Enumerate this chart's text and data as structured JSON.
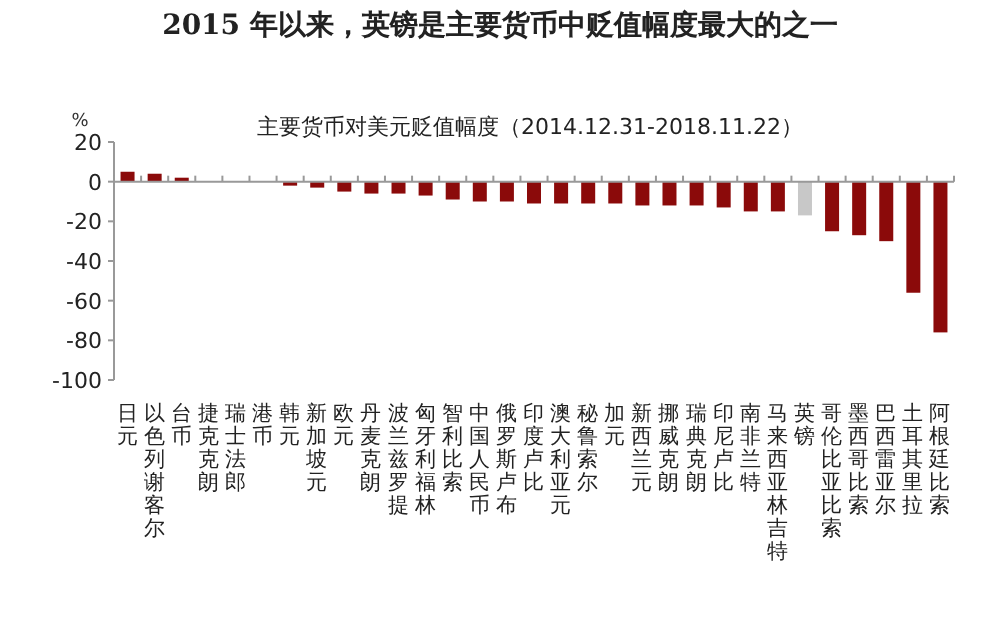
{
  "chart_data": {
    "type": "bar",
    "title": "2015 年以来，英镑是主要货币中贬值幅度最大的之一",
    "subtitle": "主要货币对美元贬值幅度（2014.12.31-2018.11.22）",
    "ylabel": "%",
    "categories": [
      "日元",
      "以色列谢客尔",
      "台币",
      "捷克克朗",
      "瑞士法郎",
      "港币",
      "韩元",
      "新加坡元",
      "欧元",
      "丹麦克朗",
      "波兰兹罗提",
      "匈牙利福林",
      "智利比索",
      "中国人民币",
      "俄罗斯卢布",
      "印度卢比",
      "澳大利亚元",
      "秘鲁索尔",
      "加元",
      "新西兰元",
      "挪威克朗",
      "瑞典克朗",
      "印尼卢比",
      "南非兰特",
      "马来西亚林吉特",
      "英镑",
      "哥伦比亚比索",
      "墨西哥比索",
      "巴西雷亚尔",
      "土耳其里拉",
      "阿根廷比索"
    ],
    "values": [
      5,
      4,
      2,
      0,
      0,
      0,
      -2,
      -3,
      -5,
      -6,
      -6,
      -7,
      -9,
      -10,
      -10,
      -11,
      -11,
      -11,
      -11,
      -12,
      -12,
      -12,
      -13,
      -15,
      -15,
      -17,
      -25,
      -27,
      -30,
      -56,
      -76
    ],
    "colors": [
      "#8b0a0a",
      "#8b0a0a",
      "#8b0a0a",
      "#8b0a0a",
      "#8b0a0a",
      "#8b0a0a",
      "#8b0a0a",
      "#8b0a0a",
      "#8b0a0a",
      "#8b0a0a",
      "#8b0a0a",
      "#8b0a0a",
      "#8b0a0a",
      "#8b0a0a",
      "#8b0a0a",
      "#8b0a0a",
      "#8b0a0a",
      "#8b0a0a",
      "#8b0a0a",
      "#8b0a0a",
      "#8b0a0a",
      "#8b0a0a",
      "#8b0a0a",
      "#8b0a0a",
      "#8b0a0a",
      "#c8c8c8",
      "#8b0a0a",
      "#8b0a0a",
      "#8b0a0a",
      "#8b0a0a",
      "#8b0a0a"
    ],
    "ylim": [
      -100,
      20
    ],
    "yticks": [
      20,
      0,
      -20,
      -40,
      -60,
      -80,
      -100
    ]
  }
}
